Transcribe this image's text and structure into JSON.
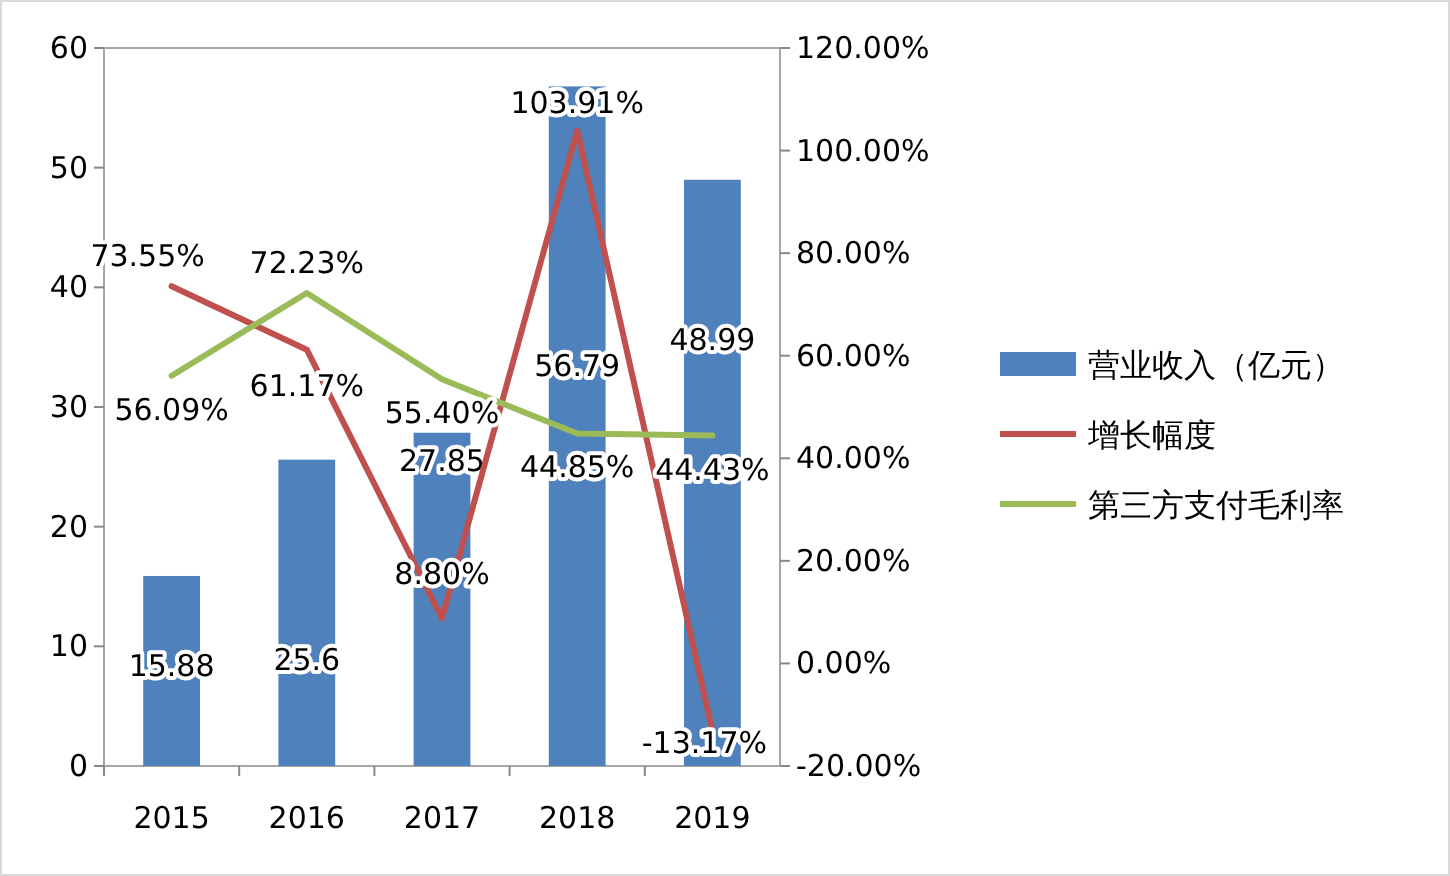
{
  "chart_data": {
    "type": "bar",
    "categories": [
      "2015",
      "2016",
      "2017",
      "2018",
      "2019"
    ],
    "series": [
      {
        "name": "营业收入（亿元）",
        "color": "#4f81bd",
        "values": [
          15.88,
          25.6,
          27.85,
          56.79,
          48.99
        ],
        "value_labels": [
          "15.88",
          "25.6",
          "27.85",
          "56.79",
          "48.99"
        ]
      },
      {
        "name": "增长幅度",
        "type": "line",
        "axis": "y2",
        "color": "#c0504d",
        "values": [
          73.55,
          61.17,
          8.8,
          103.91,
          -13.17
        ],
        "value_labels": [
          "73.55%",
          "61.17%",
          "8.80%",
          "103.91%",
          "-13.17%"
        ]
      },
      {
        "name": "第三方支付毛利率",
        "type": "line",
        "axis": "y2",
        "color": "#9bbb59",
        "values": [
          56.09,
          72.23,
          55.4,
          44.85,
          44.43
        ],
        "value_labels": [
          "56.09%",
          "72.23%",
          "55.40%",
          "44.85%",
          "44.43%"
        ]
      }
    ],
    "ylim": [
      0,
      60
    ],
    "yticks": [
      0,
      10,
      20,
      30,
      40,
      50,
      60
    ],
    "y2lim": [
      -20,
      120
    ],
    "y2ticks": [
      {
        "value": -20,
        "label": "-20.00%"
      },
      {
        "value": 0,
        "label": "0.00%"
      },
      {
        "value": 20,
        "label": "20.00%"
      },
      {
        "value": 40,
        "label": "40.00%"
      },
      {
        "value": 60,
        "label": "60.00%"
      },
      {
        "value": 80,
        "label": "80.00%"
      },
      {
        "value": 100,
        "label": "100.00%"
      },
      {
        "value": 120,
        "label": "120.00%"
      }
    ],
    "legend": "right",
    "grid": false,
    "marker": "none",
    "line_style": "solid"
  }
}
